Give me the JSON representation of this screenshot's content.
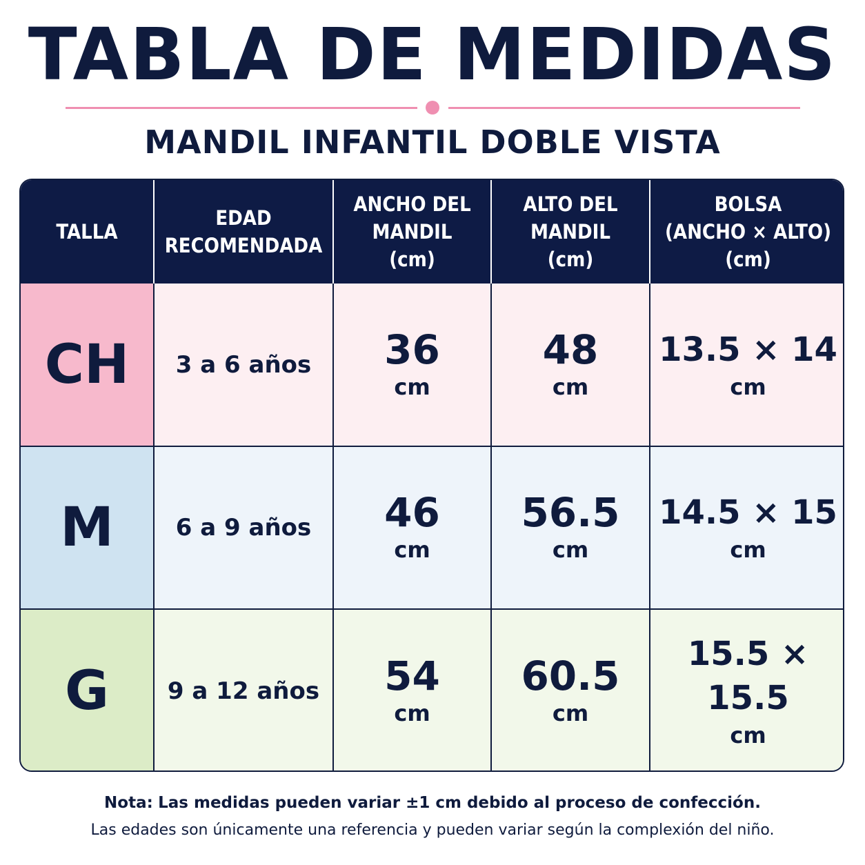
{
  "title": "TABLA DE MEDIDAS",
  "subtitle": "MANDIL INFANTIL DOBLE VISTA",
  "colors": {
    "navy": "#0e1b45",
    "accent_pink": "#ef8fb1",
    "ch_size": "#f7b9cc",
    "m_size": "#cfe3f1",
    "g_size": "#dcecc7"
  },
  "table": {
    "headers": [
      [
        "TALLA"
      ],
      [
        "EDAD",
        "RECOMENDADA"
      ],
      [
        "ANCHO DEL",
        "MANDIL",
        "(cm)"
      ],
      [
        "ALTO DEL",
        "MANDIL",
        "(cm)"
      ],
      [
        "BOLSA",
        "(ANCHO × ALTO)",
        "(cm)"
      ]
    ],
    "rows": [
      {
        "size": "CH",
        "age": "3 a 6 años",
        "width": "36",
        "height": "48",
        "pocket": "13.5 × 14",
        "unit": "cm"
      },
      {
        "size": "M",
        "age": "6 a 9 años",
        "width": "46",
        "height": "56.5",
        "pocket": "14.5 × 15",
        "unit": "cm"
      },
      {
        "size": "G",
        "age": "9 a 12 años",
        "width": "54",
        "height": "60.5",
        "pocket": "15.5 × 15.5",
        "unit": "cm"
      }
    ]
  },
  "note": {
    "label": "Nota:",
    "text": "Las medidas pueden variar ±1 cm debido al proceso de confección.",
    "line2": "Las edades son únicamente una referencia y pueden variar según la complexión del niño."
  }
}
